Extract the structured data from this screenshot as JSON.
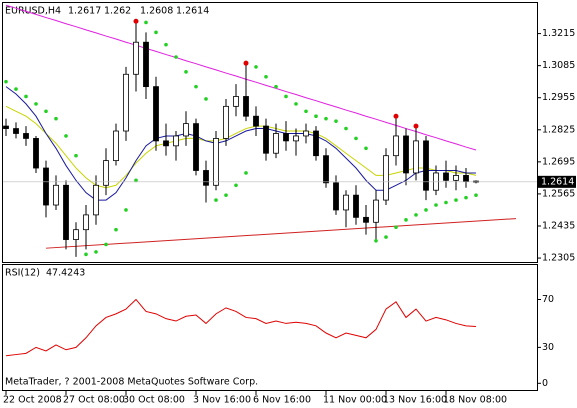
{
  "chart_data": {
    "type": "candlestick",
    "symbol": "EURUSD,H4",
    "categories": [
      "22 Oct 2008",
      null,
      null,
      null,
      null,
      null,
      "27 Oct 08:00",
      null,
      null,
      null,
      null,
      null,
      "30 Oct 08:00",
      null,
      null,
      null,
      null,
      null,
      null,
      "3 Nov 16:00",
      null,
      null,
      null,
      null,
      null,
      "6 Nov 16:00",
      null,
      null,
      null,
      null,
      null,
      null,
      "11 Nov 00:00",
      null,
      null,
      null,
      null,
      null,
      "13 Nov 16:00",
      null,
      null,
      null,
      null,
      null,
      "18 Nov 08:00",
      null,
      null,
      null
    ],
    "open": [
      1.284,
      1.283,
      1.281,
      1.279,
      1.267,
      1.252,
      1.26,
      1.238,
      1.242,
      1.248,
      1.26,
      1.27,
      1.282,
      1.305,
      1.318,
      1.3,
      1.278,
      1.276,
      1.28,
      1.285,
      1.266,
      1.26,
      1.279,
      1.292,
      1.296,
      1.288,
      1.284,
      1.273,
      1.281,
      1.278,
      1.28,
      1.282,
      1.272,
      1.261,
      1.25,
      1.256,
      1.247,
      1.245,
      1.254,
      1.272,
      1.28,
      1.265,
      1.278,
      1.258,
      1.265,
      1.262,
      1.264,
      1.2617
    ],
    "high": [
      1.287,
      1.2855,
      1.284,
      1.28,
      1.27,
      1.264,
      1.262,
      1.245,
      1.252,
      1.264,
      1.275,
      1.285,
      1.308,
      1.3265,
      1.322,
      1.304,
      1.285,
      1.282,
      1.29,
      1.287,
      1.27,
      1.282,
      1.295,
      1.301,
      1.3095,
      1.292,
      1.287,
      1.285,
      1.286,
      1.283,
      1.285,
      1.284,
      1.275,
      1.264,
      1.258,
      1.26,
      1.252,
      1.258,
      1.275,
      1.288,
      1.283,
      1.284,
      1.28,
      1.268,
      1.27,
      1.268,
      1.267,
      1.262
    ],
    "low": [
      1.28,
      1.279,
      1.276,
      1.265,
      1.247,
      1.25,
      1.234,
      1.231,
      1.234,
      1.244,
      1.256,
      1.268,
      1.278,
      1.298,
      1.295,
      1.274,
      1.272,
      1.27,
      1.276,
      1.264,
      1.253,
      1.258,
      1.276,
      1.288,
      1.286,
      1.28,
      1.27,
      1.271,
      1.274,
      1.272,
      1.277,
      1.27,
      1.259,
      1.248,
      1.243,
      1.244,
      1.24,
      1.2375,
      1.252,
      1.268,
      1.26,
      1.262,
      1.254,
      1.256,
      1.259,
      1.258,
      1.259,
      1.2608
    ],
    "close": [
      1.283,
      1.281,
      1.279,
      1.267,
      1.252,
      1.26,
      1.238,
      1.242,
      1.248,
      1.26,
      1.27,
      1.282,
      1.305,
      1.318,
      1.3,
      1.278,
      1.276,
      1.28,
      1.285,
      1.266,
      1.26,
      1.279,
      1.292,
      1.296,
      1.288,
      1.284,
      1.273,
      1.281,
      1.278,
      1.28,
      1.282,
      1.272,
      1.261,
      1.25,
      1.256,
      1.247,
      1.245,
      1.254,
      1.272,
      1.28,
      1.265,
      1.278,
      1.258,
      1.265,
      1.262,
      1.264,
      1.2617,
      1.2614
    ],
    "bull_color": "#ffffff",
    "bear_color": "#000000",
    "ylim": [
      1.2289,
      1.3339
    ],
    "yticks": [
      1.3215,
      1.3085,
      1.2955,
      1.2825,
      1.2695,
      1.2565,
      1.2435,
      1.2305
    ],
    "moving_averages": [
      {
        "color": "#c8d400",
        "values": [
          1.292,
          1.29,
          1.288,
          1.285,
          1.281,
          1.277,
          1.272,
          1.267,
          1.263,
          1.26,
          1.259,
          1.26,
          1.264,
          1.269,
          1.273,
          1.276,
          1.277,
          1.278,
          1.279,
          1.279,
          1.278,
          1.278,
          1.279,
          1.281,
          1.283,
          1.284,
          1.284,
          1.283,
          1.282,
          1.282,
          1.282,
          1.281,
          1.279,
          1.276,
          1.273,
          1.27,
          1.267,
          1.264,
          1.264,
          1.265,
          1.266,
          1.267,
          1.267,
          1.266,
          1.266,
          1.265,
          1.265,
          1.264
        ]
      },
      {
        "color": "#1a1aa0",
        "values": [
          1.3,
          1.297,
          1.293,
          1.288,
          1.281,
          1.275,
          1.268,
          1.262,
          1.257,
          1.254,
          1.254,
          1.257,
          1.263,
          1.27,
          1.276,
          1.279,
          1.28,
          1.28,
          1.281,
          1.28,
          1.278,
          1.277,
          1.278,
          1.28,
          1.282,
          1.283,
          1.283,
          1.282,
          1.281,
          1.281,
          1.281,
          1.28,
          1.278,
          1.275,
          1.271,
          1.267,
          1.262,
          1.258,
          1.258,
          1.26,
          1.262,
          1.265,
          1.266,
          1.266,
          1.266,
          1.266,
          1.265,
          1.265
        ]
      },
      {
        "color": "#e020e0",
        "values": [
          1.333,
          1.3318,
          1.3305,
          1.3293,
          1.328,
          1.3268,
          1.3255,
          1.3243,
          1.323,
          1.3218,
          1.3205,
          1.3193,
          1.318,
          1.3168,
          1.3155,
          1.3143,
          1.313,
          1.3118,
          1.3105,
          1.3093,
          1.308,
          1.3068,
          1.3055,
          1.3043,
          1.303,
          1.3018,
          1.3005,
          1.2993,
          1.298,
          1.2968,
          1.2955,
          1.2943,
          1.293,
          1.2918,
          1.2905,
          1.2893,
          1.288,
          1.2868,
          1.2855,
          1.2843,
          1.283,
          1.2818,
          1.2805,
          1.2793,
          1.278,
          1.2768,
          1.2755,
          1.2743
        ]
      }
    ],
    "sar": {
      "color": "#22d022",
      "values": [
        1.302,
        1.299,
        1.296,
        1.293,
        1.29,
        1.287,
        1.28,
        1.272,
        1.232,
        1.233,
        1.236,
        1.242,
        1.25,
        1.262,
        1.326,
        1.322,
        1.317,
        1.312,
        1.306,
        1.3,
        1.295,
        1.254,
        1.256,
        1.26,
        1.265,
        1.308,
        1.304,
        1.3,
        1.296,
        1.293,
        1.29,
        1.288,
        1.287,
        1.286,
        1.283,
        1.279,
        1.275,
        1.2375,
        1.239,
        1.243,
        1.246,
        1.248,
        1.25,
        1.252,
        1.253,
        1.254,
        1.255,
        1.256
      ]
    },
    "trendlines": [
      {
        "color": "#d02020",
        "start_bar": 4,
        "start": 1.2345,
        "end_bar": 51,
        "end": 1.2465
      }
    ],
    "fractals": {
      "color": "#e00000",
      "bars": [
        13,
        24,
        39,
        41
      ],
      "values": [
        1.3265,
        1.3095,
        1.288,
        1.284
      ]
    },
    "rsi": {
      "title": "RSI(12)",
      "color": "#e00000",
      "values": [
        23,
        24,
        25,
        30,
        27,
        32,
        28,
        30,
        38,
        48,
        55,
        58,
        62,
        70,
        60,
        58,
        54,
        52,
        56,
        57,
        50,
        58,
        63,
        60,
        55,
        54,
        50,
        52,
        50,
        51,
        50,
        48,
        42,
        38,
        42,
        40,
        38,
        45,
        62,
        68,
        55,
        62,
        52,
        55,
        53,
        50,
        48,
        47.4243
      ],
      "ylim": [
        -5.6,
        98.8
      ],
      "yticks": [
        70,
        30,
        0
      ]
    },
    "copyright": "MetaTrader, ? 2001-2008 MetaQuotes Software Corp."
  }
}
